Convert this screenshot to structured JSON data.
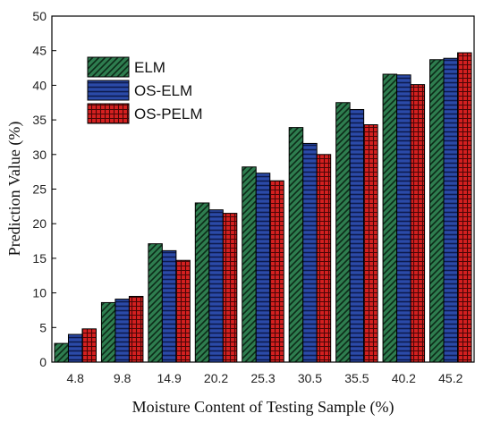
{
  "chart_data": {
    "type": "bar",
    "title": "",
    "xlabel": "Moisture Content of Testing Sample (%)",
    "ylabel": "Prediction Value (%)",
    "ylim": [
      0,
      50
    ],
    "yticks": [
      0,
      5,
      10,
      15,
      20,
      25,
      30,
      35,
      40,
      45,
      50
    ],
    "categories": [
      "4.8",
      "9.8",
      "14.9",
      "20.2",
      "25.3",
      "30.5",
      "35.5",
      "40.2",
      "45.2"
    ],
    "grid": false,
    "legend_position": "top-left",
    "series": [
      {
        "name": "ELM",
        "values": [
          2.7,
          8.6,
          17.1,
          23.0,
          28.2,
          33.9,
          37.5,
          41.6,
          43.7
        ],
        "color": "#2e7d4f",
        "pattern": "diagonal-hatch"
      },
      {
        "name": "OS-ELM",
        "values": [
          4.0,
          9.1,
          16.1,
          22.0,
          27.3,
          31.6,
          36.5,
          41.5,
          43.9
        ],
        "color": "#2b4aa8",
        "pattern": "horizontal-lines"
      },
      {
        "name": "OS-PELM",
        "values": [
          4.8,
          9.5,
          14.7,
          21.5,
          26.2,
          30.0,
          34.3,
          40.1,
          44.7
        ],
        "color": "#d42020",
        "pattern": "grid"
      }
    ]
  }
}
